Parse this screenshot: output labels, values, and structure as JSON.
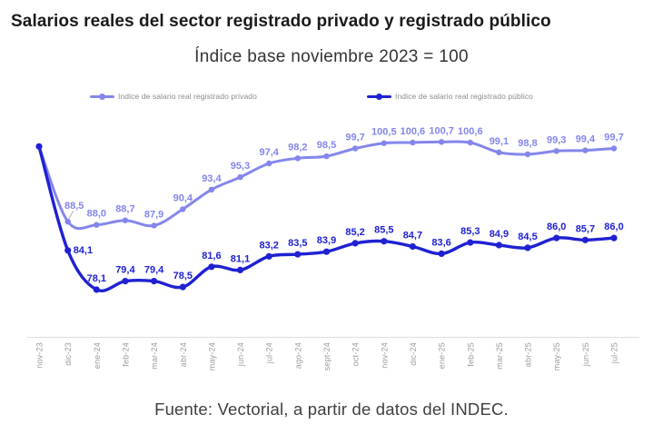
{
  "header": {
    "title": "Salarios reales del sector registrado privado y registrado público",
    "subtitle": "Índice base noviembre 2023 = 100"
  },
  "footer": {
    "source": "Fuente: Vectorial, a partir de datos del INDEC."
  },
  "chart_data": {
    "type": "line",
    "title": "Salarios reales del sector registrado privado y registrado público",
    "subtitle": "Índice base noviembre 2023 = 100",
    "categories": [
      "nov-23",
      "dic-23",
      "ene-24",
      "feb-24",
      "mar-24",
      "abr-24",
      "may-24",
      "jun-24",
      "jul-24",
      "ago-24",
      "sept-24",
      "oct-24",
      "nov-24",
      "dic-24",
      "ene-25",
      "feb-25",
      "mar-25",
      "abr-25",
      "may-25",
      "jun-25",
      "jul-25"
    ],
    "series": [
      {
        "name": "Indice de salario real registrado privado",
        "color": "#8486eb",
        "values": [
          100,
          88.5,
          88.0,
          88.7,
          87.9,
          90.4,
          93.4,
          95.3,
          97.4,
          98.2,
          98.5,
          99.7,
          100.5,
          100.6,
          100.7,
          100.6,
          99.1,
          98.8,
          99.3,
          99.4,
          99.7
        ]
      },
      {
        "name": "Indice de salario real registrado público",
        "color": "#1f21d2",
        "values": [
          100,
          84.1,
          78.1,
          79.4,
          79.4,
          78.5,
          81.6,
          81.1,
          83.2,
          83.5,
          83.9,
          85.2,
          85.5,
          84.7,
          83.6,
          85.3,
          84.9,
          84.5,
          86.0,
          85.7,
          86.0
        ]
      }
    ],
    "ylim": [
      70.8,
      104.5
    ],
    "grid": false,
    "legend_position": "top",
    "first_point_value": 100,
    "first_point_labeled": false,
    "axis_color": "#dddddd",
    "tick_label_color": "#9b9b9b"
  }
}
